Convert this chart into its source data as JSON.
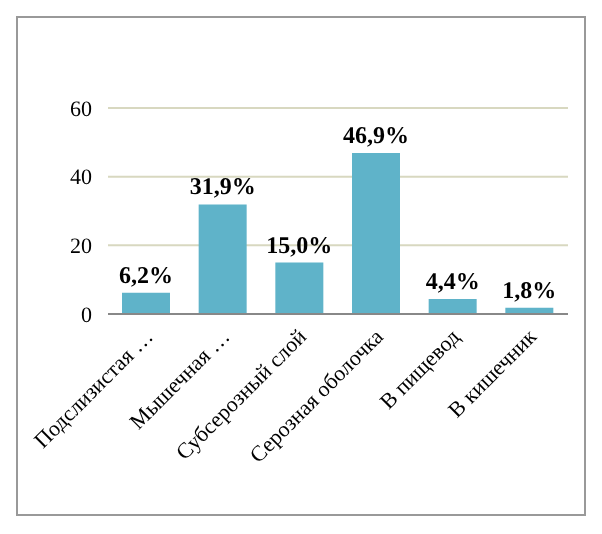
{
  "chart_data": {
    "type": "bar",
    "categories": [
      "Подслизистая …",
      "Мышечная …",
      "Субсерозный слой",
      "Серозная оболочка",
      "В пищевод",
      "В кишечник"
    ],
    "values": [
      6.2,
      31.9,
      15.0,
      46.9,
      4.4,
      1.8
    ],
    "value_labels": [
      "6,2%",
      "31,9%",
      "15,0%",
      "46,9%",
      "4,4%",
      "1,8%"
    ],
    "color": "#5fb3c9",
    "ylim": [
      0,
      60
    ],
    "yticks": [
      0,
      20,
      40,
      60
    ],
    "grid": "y",
    "legend": false
  }
}
